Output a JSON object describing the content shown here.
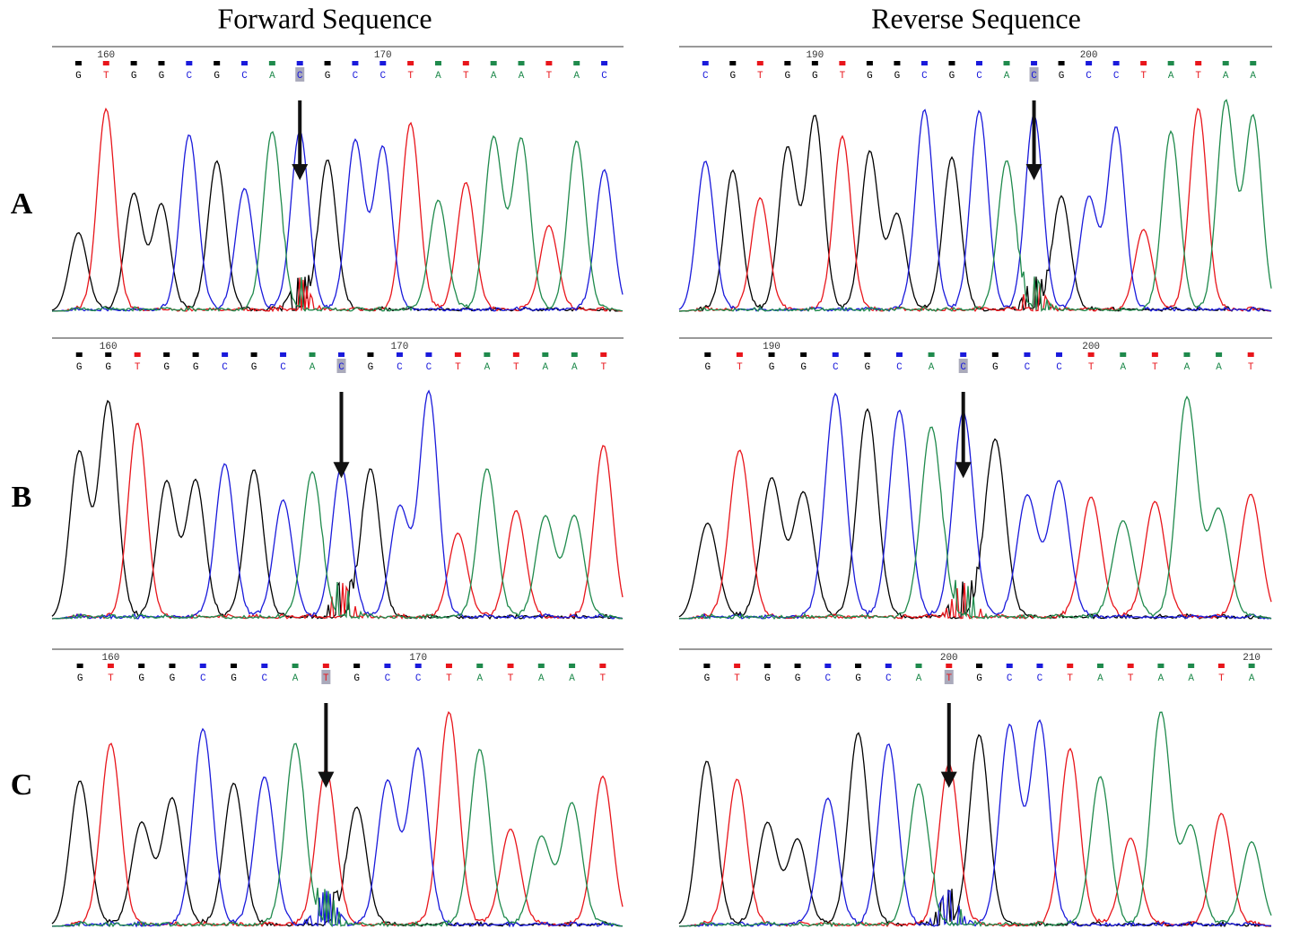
{
  "columns": [
    "Forward Sequence",
    "Reverse Sequence"
  ],
  "rows": [
    "A",
    "B",
    "C"
  ],
  "base_colors": {
    "G": "#000000",
    "T": "#e8151b",
    "C": "#1a1adb",
    "A": "#1f8a4c"
  },
  "panels": [
    {
      "row": 0,
      "column": 0,
      "bases": [
        "G",
        "T",
        "G",
        "G",
        "C",
        "G",
        "C",
        "A",
        "C",
        "G",
        "C",
        "C",
        "T",
        "A",
        "T",
        "A",
        "A",
        "T",
        "A",
        "C"
      ],
      "ticks": [
        {
          "index": 1,
          "label": "160"
        },
        {
          "index": 11,
          "label": "170"
        }
      ],
      "highlight": 8
    },
    {
      "row": 0,
      "column": 1,
      "bases": [
        "C",
        "G",
        "T",
        "G",
        "G",
        "T",
        "G",
        "G",
        "C",
        "G",
        "C",
        "A",
        "C",
        "G",
        "C",
        "C",
        "T",
        "A",
        "T",
        "A",
        "A"
      ],
      "ticks": [
        {
          "index": 4,
          "label": "190"
        },
        {
          "index": 14,
          "label": "200"
        }
      ],
      "highlight": 12
    },
    {
      "row": 1,
      "column": 0,
      "bases": [
        "G",
        "G",
        "T",
        "G",
        "G",
        "C",
        "G",
        "C",
        "A",
        "C",
        "G",
        "C",
        "C",
        "T",
        "A",
        "T",
        "A",
        "A",
        "T"
      ],
      "ticks": [
        {
          "index": 1,
          "label": "160"
        },
        {
          "index": 11,
          "label": "170"
        }
      ],
      "highlight": 9
    },
    {
      "row": 1,
      "column": 1,
      "bases": [
        "G",
        "T",
        "G",
        "G",
        "C",
        "G",
        "C",
        "A",
        "C",
        "G",
        "C",
        "C",
        "T",
        "A",
        "T",
        "A",
        "A",
        "T"
      ],
      "ticks": [
        {
          "index": 2,
          "label": "190"
        },
        {
          "index": 12,
          "label": "200"
        }
      ],
      "highlight": 8
    },
    {
      "row": 2,
      "column": 0,
      "bases": [
        "G",
        "T",
        "G",
        "G",
        "C",
        "G",
        "C",
        "A",
        "T",
        "G",
        "C",
        "C",
        "T",
        "A",
        "T",
        "A",
        "A",
        "T"
      ],
      "ticks": [
        {
          "index": 1,
          "label": "160"
        },
        {
          "index": 11,
          "label": "170"
        }
      ],
      "highlight": 8
    },
    {
      "row": 2,
      "column": 1,
      "bases": [
        "G",
        "T",
        "G",
        "G",
        "C",
        "G",
        "C",
        "A",
        "T",
        "G",
        "C",
        "C",
        "T",
        "A",
        "T",
        "A",
        "A",
        "T",
        "A"
      ],
      "ticks": [
        {
          "index": 8,
          "label": "200"
        },
        {
          "index": 18,
          "label": "210"
        }
      ],
      "highlight": 8
    }
  ]
}
